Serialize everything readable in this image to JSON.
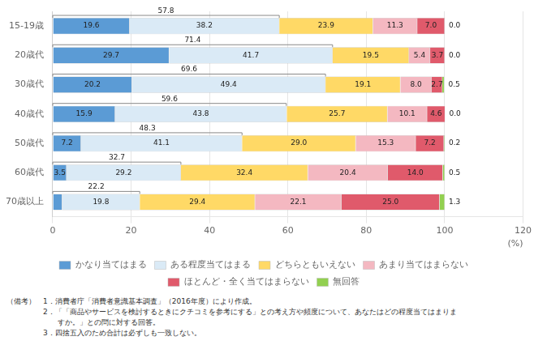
{
  "chart_data": {
    "type": "bar",
    "orientation": "horizontal",
    "stacked": true,
    "categories": [
      "15-19歳",
      "20歳代",
      "30歳代",
      "40歳代",
      "50歳代",
      "60歳代",
      "70歳以上"
    ],
    "series": [
      {
        "name": "かなり当てはまる",
        "color": "#5b9bd5",
        "values": [
          19.6,
          29.7,
          20.2,
          15.9,
          7.2,
          3.5,
          2.4
        ],
        "value_labels": [
          "19.6",
          "29.7",
          "20.2",
          "15.9",
          "7.2",
          "3.5",
          null
        ]
      },
      {
        "name": "ある程度当てはまる",
        "color": "#daeaf6",
        "values": [
          38.2,
          41.7,
          49.4,
          43.8,
          41.1,
          29.2,
          19.8
        ],
        "value_labels": [
          "38.2",
          "41.7",
          "49.4",
          "43.8",
          "41.1",
          "29.2",
          "19.8"
        ]
      },
      {
        "name": "どちらともいえない",
        "color": "#ffd966",
        "values": [
          23.9,
          19.5,
          19.1,
          25.7,
          29.0,
          32.4,
          29.4
        ],
        "value_labels": [
          "23.9",
          "19.5",
          "19.1",
          "25.7",
          "29.0",
          "32.4",
          "29.4"
        ]
      },
      {
        "name": "あまり当てはまらない",
        "color": "#f4b8c1",
        "values": [
          11.3,
          5.4,
          8.0,
          10.1,
          15.3,
          20.4,
          22.1
        ],
        "value_labels": [
          "11.3",
          "5.4",
          "8.0",
          "10.1",
          "15.3",
          "20.4",
          "22.1"
        ]
      },
      {
        "name": "ほとんど・全く当てはまらない",
        "color": "#e05a6b",
        "values": [
          7.0,
          3.7,
          2.7,
          4.6,
          7.2,
          14.0,
          25.0
        ],
        "value_labels": [
          "7.0",
          "3.7",
          "2.7",
          "4.6",
          "7.2",
          "14.0",
          "25.0"
        ]
      },
      {
        "name": "無回答",
        "color": "#92d050",
        "values": [
          0.0,
          0.0,
          0.5,
          0.0,
          0.2,
          0.5,
          1.3
        ],
        "value_labels": [
          "0.0",
          "0.0",
          "0.5",
          "0.0",
          "0.2",
          "0.5",
          "1.3"
        ]
      }
    ],
    "bracket_values": [
      57.8,
      71.4,
      69.6,
      59.6,
      48.3,
      32.7,
      22.2
    ],
    "x_label": "(%)",
    "xlim": [
      0,
      120
    ],
    "xticks": [
      0,
      20,
      40,
      60,
      80,
      100,
      120
    ],
    "grid": true,
    "legend": "bottom",
    "data_labels": true,
    "notes": [
      "（備考）　1．消費者庁「消費者意識基本調査」（2016年度）により作成。",
      "　　　　　2．「「商品やサービスを検討するときにクチコミを参考にする」との考え方や頻度について、あなたはどの程度当てはまりま",
      "　　　　　　　すか。」との問に対する回答。",
      "　　　　　3．四捨五入のため合計は必ずしも一致しない。"
    ]
  }
}
